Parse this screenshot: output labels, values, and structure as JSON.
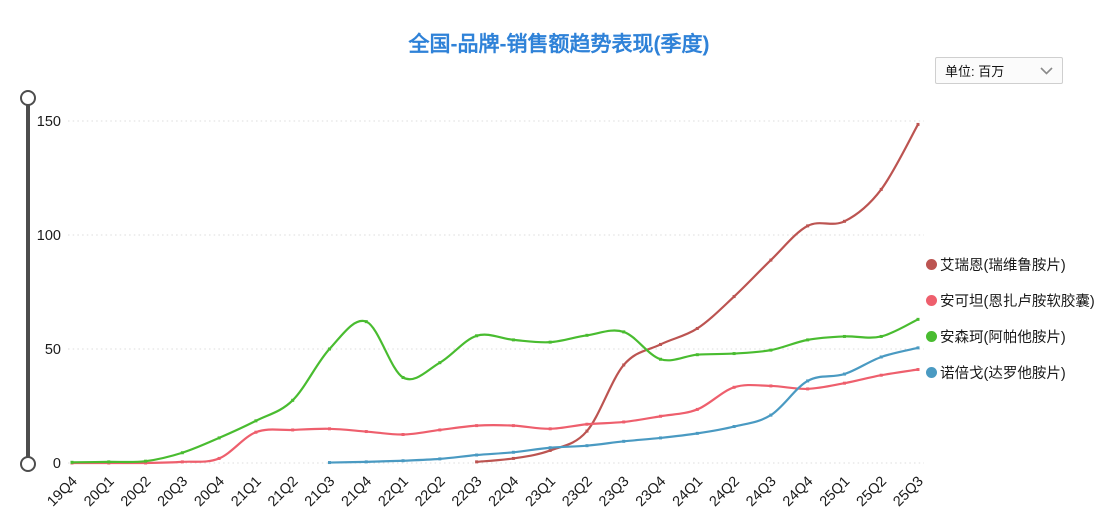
{
  "colors": {
    "title": "#2f82d8",
    "grid": "#dcdcdc",
    "axis_text": "#1a1a1a",
    "slider": "#4d4d4d"
  },
  "controls": {
    "unit_dropdown": {
      "value": "单位: 百万"
    }
  },
  "chart_data": {
    "type": "line",
    "title": "全国-品牌-销售额趋势表现(季度)",
    "unit_label": "单位: 百万",
    "xlabel": "",
    "ylabel": "",
    "ylim": [
      0,
      150
    ],
    "yticks": [
      0,
      50,
      100,
      150
    ],
    "grid": "dotted-horizontal",
    "legend_position": "right",
    "smooth": true,
    "categories": [
      "19Q4",
      "20Q1",
      "20Q2",
      "20Q3",
      "20Q4",
      "21Q1",
      "21Q2",
      "21Q3",
      "21Q4",
      "22Q1",
      "22Q2",
      "22Q3",
      "22Q4",
      "23Q1",
      "23Q2",
      "23Q3",
      "23Q4",
      "24Q1",
      "24Q2",
      "24Q3",
      "24Q4",
      "25Q1",
      "25Q2",
      "25Q3"
    ],
    "series": [
      {
        "name": "艾瑞恩(瑞维鲁胺片)",
        "color": "#bc5451",
        "start_category": "22Q3",
        "start_index": 11,
        "values": [
          0.5,
          2,
          5.5,
          14,
          43,
          52,
          59,
          73,
          89,
          104,
          106,
          120,
          148.5
        ]
      },
      {
        "name": "安可坦(恩扎卢胺软胶囊)",
        "color": "#ee5f6d",
        "start_category": "19Q4",
        "start_index": 0,
        "values": [
          0,
          0,
          0,
          0.5,
          2,
          13.5,
          14.5,
          15,
          13.8,
          12.5,
          14.5,
          16.4,
          16.4,
          15,
          17,
          18,
          20.5,
          23.5,
          33.2,
          33.8,
          32.5,
          35,
          38.5,
          41
        ]
      },
      {
        "name": "安森珂(阿帕他胺片)",
        "color": "#49bc30",
        "start_category": "19Q4",
        "start_index": 0,
        "values": [
          0.3,
          0.5,
          0.8,
          4.5,
          11,
          18.5,
          27.5,
          50,
          62,
          37.5,
          44,
          55.8,
          54,
          53,
          56,
          57.5,
          45.5,
          47.5,
          48,
          49.5,
          54,
          55.5,
          55.5,
          63
        ]
      },
      {
        "name": "诺倍戈(达罗他胺片)",
        "color": "#4a9ac2",
        "start_category": "21Q3",
        "start_index": 7,
        "values": [
          0.2,
          0.5,
          1,
          1.8,
          3.5,
          4.7,
          6.7,
          7.6,
          9.5,
          11,
          13,
          16,
          21,
          36,
          39,
          46.5,
          50.5
        ]
      }
    ]
  }
}
